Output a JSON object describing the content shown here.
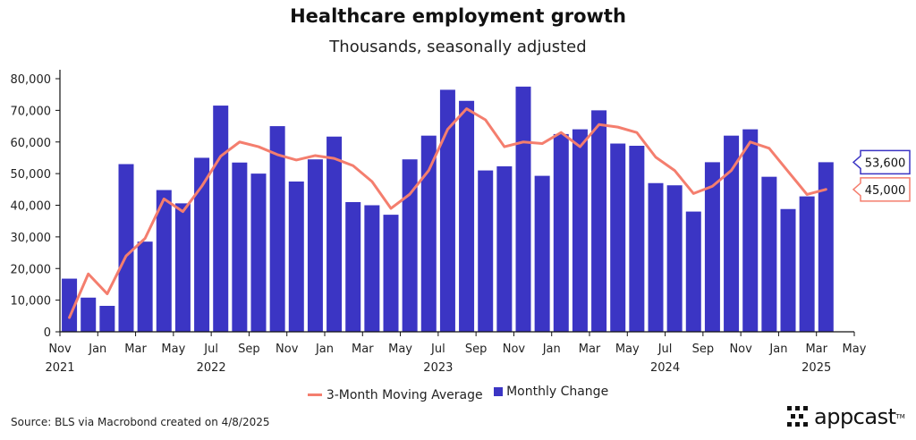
{
  "header": {
    "title": "Healthcare employment growth",
    "subtitle": "Thousands, seasonally adjusted"
  },
  "legend": {
    "line_label": "3-Month Moving Average",
    "bar_label": "Monthly Change"
  },
  "footer": {
    "source": "Source: BLS via Macrobond created on 4/8/2025",
    "logo_text": "appcast",
    "logo_tm": "TM"
  },
  "colors": {
    "bar": "#3b35c4",
    "line": "#f47e6e",
    "bar_callout_border": "#3b35c4",
    "line_callout_border": "#f47e6e"
  },
  "chart_data": {
    "type": "bar",
    "x": [
      "2021-11",
      "2021-12",
      "2022-01",
      "2022-02",
      "2022-03",
      "2022-04",
      "2022-05",
      "2022-06",
      "2022-07",
      "2022-08",
      "2022-09",
      "2022-10",
      "2022-11",
      "2022-12",
      "2023-01",
      "2023-02",
      "2023-03",
      "2023-04",
      "2023-05",
      "2023-06",
      "2023-07",
      "2023-08",
      "2023-09",
      "2023-10",
      "2023-11",
      "2023-12",
      "2024-01",
      "2024-02",
      "2024-03",
      "2024-04",
      "2024-05",
      "2024-06",
      "2024-07",
      "2024-08",
      "2024-09",
      "2024-10",
      "2024-11",
      "2024-12",
      "2025-01",
      "2025-02",
      "2025-03"
    ],
    "series": [
      {
        "name": "Monthly Change",
        "type": "bar",
        "values": [
          16800,
          10800,
          8200,
          53000,
          28500,
          44800,
          40600,
          55000,
          71500,
          53500,
          50000,
          65000,
          47500,
          54500,
          61700,
          41000,
          40000,
          37000,
          54500,
          62000,
          76500,
          73000,
          51000,
          52300,
          77500,
          49300,
          62500,
          64000,
          70000,
          59500,
          58800,
          47000,
          46300,
          38000,
          53600,
          62000,
          64000,
          49000,
          38800,
          42800,
          53600
        ]
      },
      {
        "name": "3-Month Moving Average",
        "type": "line",
        "values": [
          4500,
          18300,
          12000,
          24000,
          29500,
          42000,
          38000,
          46000,
          55500,
          60000,
          58500,
          56000,
          54300,
          55700,
          54800,
          52500,
          47500,
          39000,
          43500,
          51000,
          64000,
          70500,
          67000,
          58500,
          60000,
          59500,
          63000,
          58500,
          65500,
          64700,
          63000,
          55200,
          51000,
          43700,
          46000,
          51000,
          60000,
          58000,
          50700,
          43400,
          45000
        ]
      }
    ],
    "ylim": [
      0,
      80000
    ],
    "yticks": [
      "0",
      "10,000",
      "20,000",
      "30,000",
      "40,000",
      "50,000",
      "60,000",
      "70,000",
      "80,000"
    ],
    "xticks": [
      {
        "index": 0,
        "month": "Nov",
        "year": "2021"
      },
      {
        "index": 2,
        "month": "Jan",
        "year": ""
      },
      {
        "index": 4,
        "month": "Mar",
        "year": ""
      },
      {
        "index": 6,
        "month": "May",
        "year": ""
      },
      {
        "index": 8,
        "month": "Jul",
        "year": "2022"
      },
      {
        "index": 10,
        "month": "Sep",
        "year": ""
      },
      {
        "index": 12,
        "month": "Nov",
        "year": ""
      },
      {
        "index": 14,
        "month": "Jan",
        "year": ""
      },
      {
        "index": 16,
        "month": "Mar",
        "year": ""
      },
      {
        "index": 18,
        "month": "May",
        "year": ""
      },
      {
        "index": 20,
        "month": "Jul",
        "year": "2023"
      },
      {
        "index": 22,
        "month": "Sep",
        "year": ""
      },
      {
        "index": 24,
        "month": "Nov",
        "year": ""
      },
      {
        "index": 26,
        "month": "Jan",
        "year": ""
      },
      {
        "index": 28,
        "month": "Mar",
        "year": ""
      },
      {
        "index": 30,
        "month": "May",
        "year": ""
      },
      {
        "index": 32,
        "month": "Jul",
        "year": "2024"
      },
      {
        "index": 34,
        "month": "Sep",
        "year": ""
      },
      {
        "index": 36,
        "month": "Nov",
        "year": ""
      },
      {
        "index": 38,
        "month": "Jan",
        "year": ""
      },
      {
        "index": 40,
        "month": "Mar",
        "year": "2025"
      },
      {
        "index": 42,
        "month": "May",
        "year": ""
      }
    ],
    "callouts": [
      {
        "series": "Monthly Change",
        "label": "53,600"
      },
      {
        "series": "3-Month Moving Average",
        "label": "45,000"
      }
    ],
    "legend_position": "bottom-center",
    "grid": false
  }
}
